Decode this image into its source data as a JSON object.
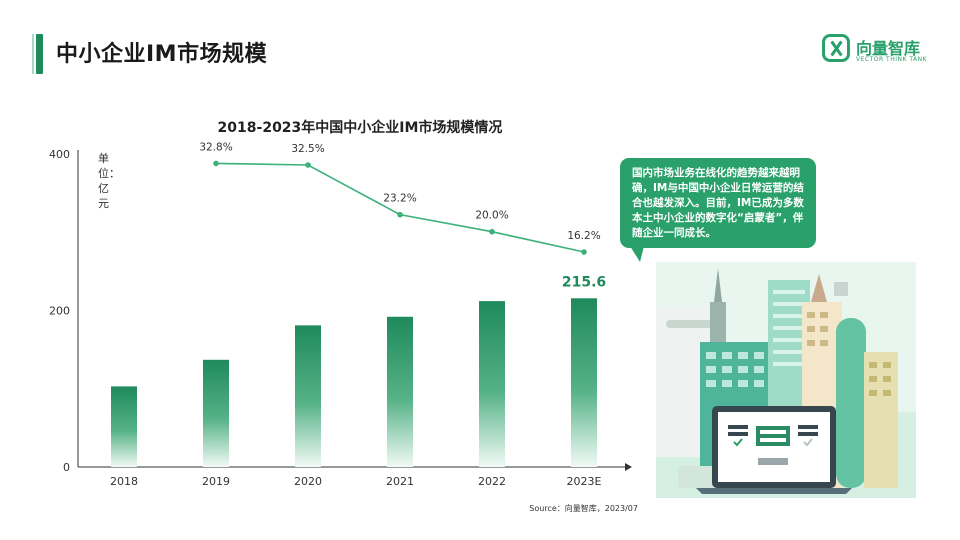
{
  "header": {
    "title": "中小企业IM市场规模",
    "logo_name": "向量智库",
    "logo_sub": "VECTOR THINK TANK"
  },
  "chart_data": {
    "type": "bar",
    "title": "2018-2023年中国中小企业IM市场规模情况",
    "unit_label": "单位：亿元",
    "categories": [
      "2018",
      "2019",
      "2020",
      "2021",
      "2022",
      "2023E"
    ],
    "series": [
      {
        "values": [
          103,
          137,
          181,
          192,
          212,
          215.6
        ]
      }
    ],
    "line_series": {
      "categories": [
        "2019",
        "2020",
        "2021",
        "2022",
        "2023E"
      ],
      "values": [
        32.8,
        32.5,
        23.2,
        20.0,
        16.2
      ],
      "labels": [
        "32.8%",
        "32.5%",
        "23.2%",
        "20.0%",
        "16.2%"
      ]
    },
    "highlight_label": "215.6",
    "ylim": [
      0,
      400
    ],
    "yticks": [
      "0",
      "200",
      "400"
    ],
    "grid": false,
    "colors": {
      "bar": "#1f8a5c",
      "line": "#3cb27a",
      "accent": "#2aa06a"
    }
  },
  "callout": {
    "text": "国内市场业务在线化的趋势越来越明确，IM与中国中小企业日常运营的结合也越发深入。目前，IM已成为多数本土中小企业的数字化“启蒙者”，伴随企业一同成长。"
  },
  "source": "Source：向量智库，2023/07"
}
